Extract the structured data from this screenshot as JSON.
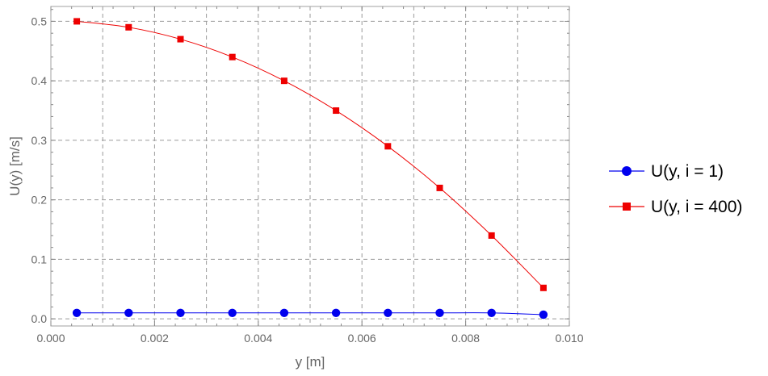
{
  "chart_data": {
    "type": "line",
    "title": "",
    "xlabel": "y [m]",
    "ylabel": "U(y) [m/s]",
    "xlim": [
      0.0,
      0.01
    ],
    "ylim": [
      -0.012,
      0.525
    ],
    "xticks": [
      {
        "value": 0.0,
        "label": "0.000"
      },
      {
        "value": 0.002,
        "label": "0.002"
      },
      {
        "value": 0.004,
        "label": "0.004"
      },
      {
        "value": 0.006,
        "label": "0.006"
      },
      {
        "value": 0.008,
        "label": "0.008"
      },
      {
        "value": 0.01,
        "label": "0.010"
      }
    ],
    "yticks": [
      {
        "value": 0.0,
        "label": "0.0"
      },
      {
        "value": 0.1,
        "label": "0.1"
      },
      {
        "value": 0.2,
        "label": "0.2"
      },
      {
        "value": 0.3,
        "label": "0.3"
      },
      {
        "value": 0.4,
        "label": "0.4"
      },
      {
        "value": 0.5,
        "label": "0.5"
      }
    ],
    "grid": true,
    "grid_x": [
      0.001,
      0.002,
      0.003,
      0.004,
      0.005,
      0.006,
      0.007,
      0.008,
      0.009
    ],
    "grid_y": [
      0.0,
      0.1,
      0.2,
      0.3,
      0.4,
      0.5
    ],
    "legend_position": "right",
    "series": [
      {
        "name": "U(y, i = 1)",
        "color": "#0000ee",
        "marker": "circle",
        "x": [
          0.0005,
          0.0015,
          0.0025,
          0.0035,
          0.0045,
          0.0055,
          0.0065,
          0.0075,
          0.0085,
          0.0095
        ],
        "y": [
          0.01,
          0.01,
          0.01,
          0.01,
          0.01,
          0.01,
          0.01,
          0.01,
          0.01,
          0.007
        ]
      },
      {
        "name": "U(y, i = 400)",
        "color": "#ee0000",
        "marker": "square",
        "x": [
          0.0005,
          0.0015,
          0.0025,
          0.0035,
          0.0045,
          0.0055,
          0.0065,
          0.0075,
          0.0085,
          0.0095
        ],
        "y": [
          0.5,
          0.49,
          0.47,
          0.44,
          0.4,
          0.35,
          0.29,
          0.22,
          0.14,
          0.052
        ]
      }
    ]
  }
}
